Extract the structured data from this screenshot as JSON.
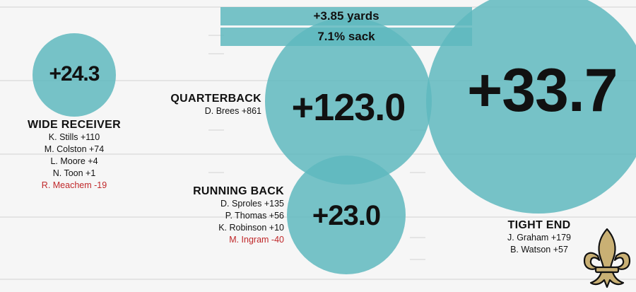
{
  "banner": {
    "top_text": "+3.85 yards",
    "bottom_text": "7.1% sack"
  },
  "wide_receiver": {
    "value": "+24.3",
    "title": "WIDE RECEIVER",
    "players": [
      "K. Stills +110",
      "M. Colston +74",
      "L. Moore +4",
      "N. Toon +1"
    ],
    "negative_player": "R. Meachem -19"
  },
  "quarterback": {
    "value": "+123.0",
    "title": "QUARTERBACK",
    "players": [
      "D. Brees +861"
    ]
  },
  "running_back": {
    "value": "+23.0",
    "title": "RUNNING BACK",
    "players": [
      "D. Sproles +135",
      "P. Thomas +56",
      "K. Robinson +10"
    ],
    "negative_player": "M. Ingram -40"
  },
  "tight_end": {
    "value": "+33.7",
    "title": "TIGHT END",
    "players": [
      "J. Graham +179",
      "B. Watson +57"
    ]
  },
  "colors": {
    "circle": "#5fb9be",
    "negative": "#c0282a",
    "logo_gold": "#c9b074"
  },
  "icons": {
    "logo": "fleur-de-lis-logo"
  }
}
